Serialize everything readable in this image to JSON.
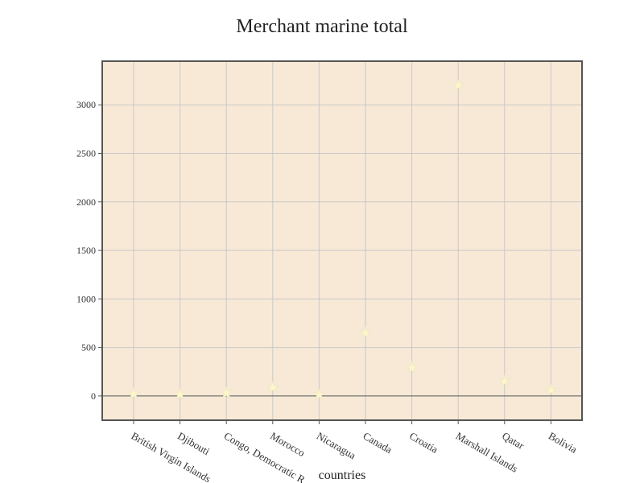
{
  "chart_data": {
    "type": "scatter",
    "title": "Merchant marine total",
    "xlabel": "countries",
    "ylabel": "",
    "categories": [
      "British Virgin Islands",
      "Djibouti",
      "Congo, Democratic R...",
      "Morocco",
      "Nicaragua",
      "Canada",
      "Croatia",
      "Marshall Islands",
      "Qatar",
      "Bolivia"
    ],
    "values": [
      20,
      15,
      30,
      85,
      12,
      650,
      290,
      3200,
      150,
      60
    ],
    "ylim": [
      -250,
      3450
    ],
    "yticks": [
      0,
      500,
      1000,
      1500,
      2000,
      2500,
      3000
    ],
    "grid": true,
    "marker": "star",
    "colors": {
      "plot_bg": "#f7e9d6",
      "grid": "#c8c8c8",
      "axis": "#555555",
      "marker_fill": "#fdf6c8",
      "marker_stroke": "#f0e8c8"
    }
  }
}
